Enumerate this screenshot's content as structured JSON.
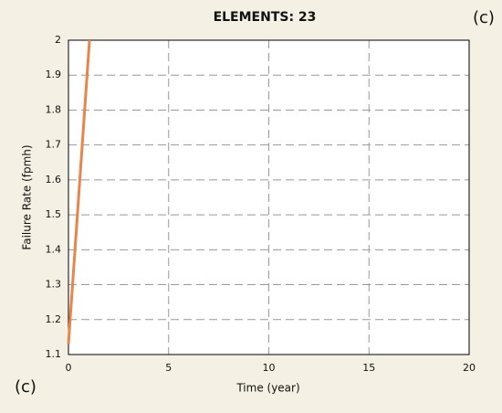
{
  "chart_data": {
    "type": "line",
    "title": "ELEMENTS:  23",
    "annotations": [
      "(c)",
      "(c)"
    ],
    "x_label": "Time (year)",
    "y_label": "Failure Rate (fpmh)",
    "x": [
      0,
      1.05
    ],
    "series": [
      {
        "color": "#e8854a",
        "values": [
          1.13,
          2
        ]
      }
    ],
    "xlim": [
      0,
      20
    ],
    "xticks": [
      0,
      5,
      10,
      15,
      20
    ],
    "ylim": [
      1.1,
      2
    ],
    "yticks": [
      1.1,
      1.2,
      1.3,
      1.4,
      1.5,
      1.6,
      1.7,
      1.8,
      1.9,
      2
    ],
    "grid": true
  }
}
